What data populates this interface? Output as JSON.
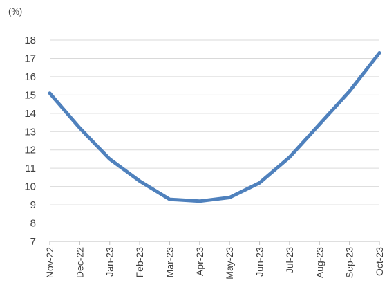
{
  "chart_data": {
    "type": "line",
    "ylabel": "(%)",
    "categories": [
      "Nov-22",
      "Dec-22",
      "Jan-23",
      "Feb-23",
      "Mar-23",
      "Apr-23",
      "May-23",
      "Jun-23",
      "Jul-23",
      "Aug-23",
      "Sep-23",
      "Oct-23"
    ],
    "series": [
      {
        "values": [
          15.1,
          13.2,
          11.5,
          10.3,
          9.3,
          9.2,
          9.4,
          10.2,
          11.6,
          13.4,
          15.2,
          17.3
        ]
      }
    ],
    "ylim": [
      7,
      18
    ],
    "yticks": [
      7,
      8,
      9,
      10,
      11,
      12,
      13,
      14,
      15,
      16,
      17,
      18
    ],
    "grid": true,
    "legend": "none",
    "line_color": "#4f81bd"
  }
}
